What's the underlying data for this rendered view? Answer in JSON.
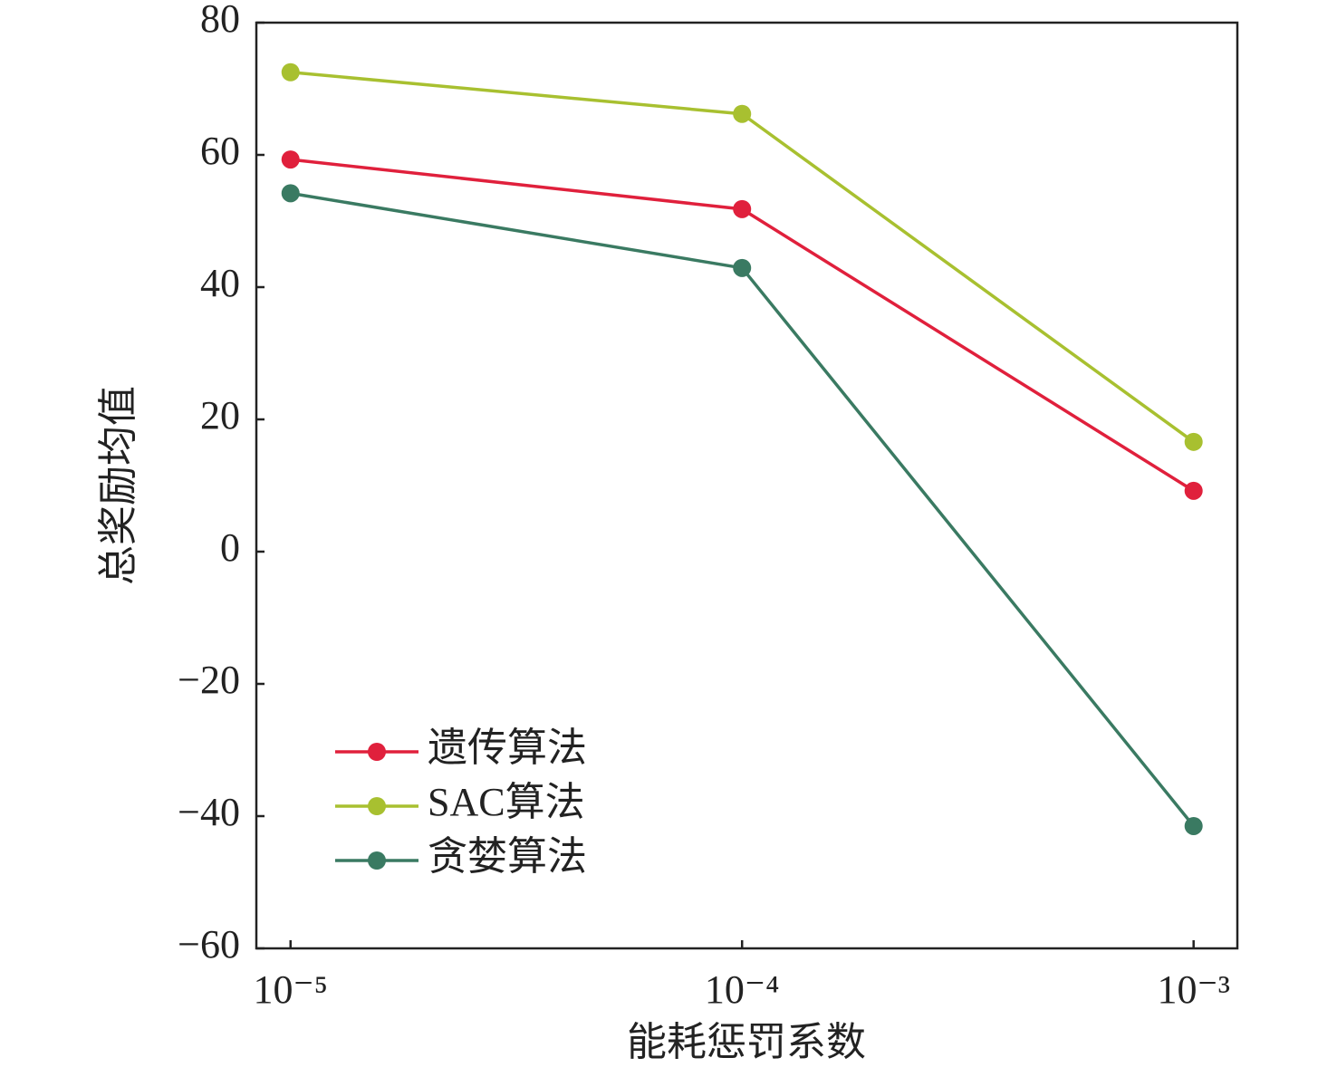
{
  "chart_data": {
    "type": "line",
    "x_label": "能耗惩罚系数",
    "y_label": "总奖励均值",
    "x": [
      1e-05,
      0.0001,
      0.001
    ],
    "x_log": true,
    "xlim": [
      8.4e-06,
      0.00125
    ],
    "xticks": [
      {
        "value": 1e-05,
        "label": "10⁻⁵"
      },
      {
        "value": 0.0001,
        "label": "10⁻⁴"
      },
      {
        "value": 0.001,
        "label": "10⁻³"
      }
    ],
    "ylim": [
      -60,
      80
    ],
    "yticks": [
      {
        "value": -60,
        "label": "−60"
      },
      {
        "value": -40,
        "label": "−40"
      },
      {
        "value": -20,
        "label": "−20"
      },
      0,
      20,
      40,
      60,
      80
    ],
    "legend": "lower left",
    "series": [
      {
        "name": "遗传算法",
        "color": "#e0203c",
        "values": [
          59.3,
          51.8,
          9.2
        ]
      },
      {
        "name": "SAC算法",
        "color": "#a8c030",
        "values": [
          72.5,
          66.2,
          16.6
        ]
      },
      {
        "name": "贪婪算法",
        "color": "#3a7a62",
        "values": [
          54.2,
          42.9,
          -41.5
        ]
      }
    ]
  }
}
